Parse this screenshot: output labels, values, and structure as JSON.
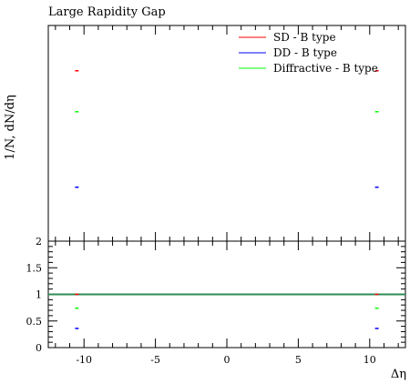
{
  "title": "Large Rapidity Gap",
  "ylabel": "1/N, dN/dη",
  "xlabel": "Δη",
  "chart_data": [
    {
      "type": "scatter",
      "panel": "main",
      "title": "Large Rapidity Gap",
      "ylabel": "1/N, dN/dη",
      "xlim": [
        -12.5,
        12.5
      ],
      "ylog": false,
      "ylim": [
        0,
        1
      ],
      "yticks_shown": false,
      "legend_position": "top-right",
      "series": [
        {
          "name": "SD - B type",
          "color": "#ff0000",
          "x": [
            -10.5,
            10.5
          ],
          "y": [
            0.79,
            0.79
          ]
        },
        {
          "name": "DD - B type",
          "color": "#0000ff",
          "x": [
            -10.5,
            10.5
          ],
          "y": [
            0.25,
            0.25
          ]
        },
        {
          "name": "Diffractive - B type",
          "color": "#00ff00",
          "x": [
            -10.5,
            10.5
          ],
          "y": [
            0.6,
            0.6
          ]
        }
      ]
    },
    {
      "type": "scatter",
      "panel": "ratio",
      "xlabel": "Δη",
      "xlim": [
        -12.5,
        12.5
      ],
      "ylim": [
        0,
        2
      ],
      "yticks": [
        0,
        0.5,
        1,
        1.5,
        2
      ],
      "yticklabels": [
        "0",
        "0.5",
        "1",
        "1.5",
        "2"
      ],
      "xticks": [
        -10,
        -5,
        0,
        5,
        10
      ],
      "xticklabels": [
        "-10",
        "-5",
        "0",
        "5",
        "10"
      ],
      "reference_line": {
        "y": 1,
        "color": "#2e8b57"
      },
      "series": [
        {
          "name": "SD - B type",
          "color": "#ff0000",
          "x": [
            -10.5,
            10.5
          ],
          "y": [
            1.0,
            1.0
          ]
        },
        {
          "name": "DD - B type",
          "color": "#0000ff",
          "x": [
            -10.5,
            10.5
          ],
          "y": [
            0.36,
            0.36
          ]
        },
        {
          "name": "Diffractive - B type",
          "color": "#00ff00",
          "x": [
            -10.5,
            10.5
          ],
          "y": [
            0.74,
            0.74
          ]
        }
      ]
    }
  ]
}
